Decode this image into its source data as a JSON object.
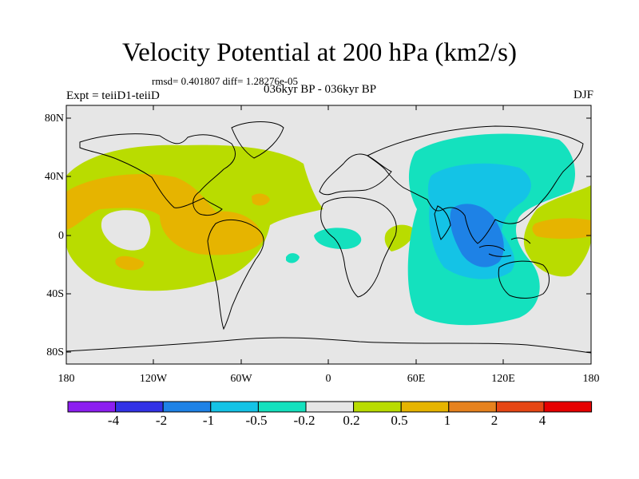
{
  "title": "Velocity Potential at 200 hPa (km2/s)",
  "stats": "rmsd= 0.401807 diff= 1.28276e-05",
  "left_label": "Expt = teiiD1-teiiD",
  "center_label": "036kyr BP - 036kyr BP",
  "right_label": "DJF",
  "lat_ticks": [
    "80N",
    "40N",
    "0",
    "40S",
    "80S"
  ],
  "lon_ticks": [
    "180",
    "120W",
    "60W",
    "0",
    "60E",
    "120E",
    "180"
  ],
  "colorbar": {
    "colors": [
      "#8c1ef0",
      "#3232e6",
      "#1e82e6",
      "#14c3e6",
      "#14e1be",
      "#e6e6e6",
      "#b9dc00",
      "#e6b400",
      "#e6821e",
      "#e64614",
      "#e60000"
    ],
    "labels": [
      "-4",
      "-2",
      "-1",
      "-0.5",
      "-0.2",
      "0.2",
      "0.5",
      "1",
      "2",
      "4"
    ]
  },
  "colors": {
    "ocean_background": "#e6e6e6",
    "positive_weak": "#b9dc00",
    "positive_mid": "#e6b400",
    "negative_weak": "#14e1be",
    "negative_mid": "#14c3e6",
    "negative_strong": "#1e82e6"
  }
}
